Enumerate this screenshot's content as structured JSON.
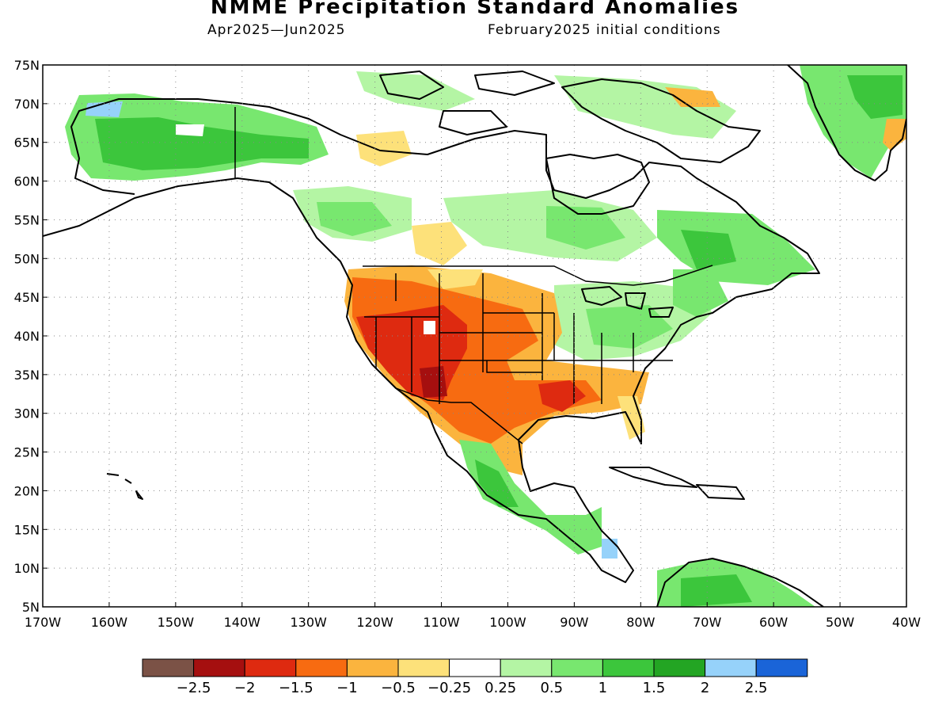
{
  "header": {
    "title": "NMME Precipitation Standard Anomalies",
    "period": "Apr2025—Jun2025",
    "initial_conditions": "February2025 initial conditions"
  },
  "map": {
    "lat_labels": [
      "75N",
      "70N",
      "65N",
      "60N",
      "55N",
      "50N",
      "45N",
      "40N",
      "35N",
      "30N",
      "25N",
      "20N",
      "15N",
      "10N",
      "5N"
    ],
    "lon_labels": [
      "170W",
      "160W",
      "150W",
      "140W",
      "130W",
      "120W",
      "110W",
      "100W",
      "90W",
      "80W",
      "70W",
      "60W",
      "50W",
      "40W"
    ],
    "land_color": "#ffffff",
    "coast_color": "#000000",
    "grid_style": "dotted"
  },
  "colorbar": {
    "colors": [
      "#7b5246",
      "#a50f0f",
      "#de2a10",
      "#f76b11",
      "#fbb43e",
      "#fde17a",
      "#ffffff",
      "#b4f5a4",
      "#78e76f",
      "#3cc63c",
      "#23a523",
      "#96d2fa",
      "#1a64d8"
    ],
    "labels": [
      "−2.5",
      "−2",
      "−1.5",
      "−1",
      "−0.5",
      "−0.25",
      "0.25",
      "0.5",
      "1",
      "1.5",
      "2",
      "2.5"
    ]
  }
}
